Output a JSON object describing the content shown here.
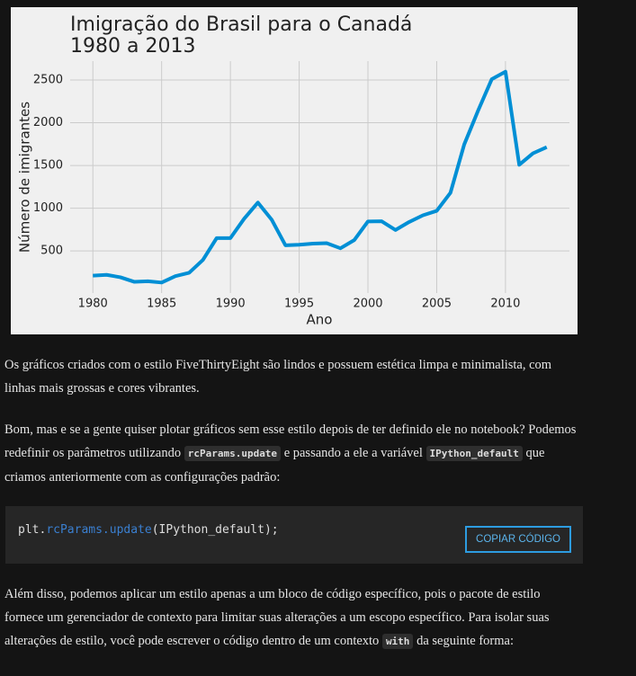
{
  "chart_data": {
    "type": "line",
    "title": [
      "Imigração do Brasil para o Canadá",
      "1980 a 2013"
    ],
    "x_label": "Ano",
    "y_label": "Número de imigrantes",
    "x": [
      1980,
      1981,
      1982,
      1983,
      1984,
      1985,
      1986,
      1987,
      1988,
      1989,
      1990,
      1991,
      1992,
      1993,
      1994,
      1995,
      1996,
      1997,
      1998,
      1999,
      2000,
      2001,
      2002,
      2003,
      2004,
      2005,
      2006,
      2007,
      2008,
      2009,
      2010,
      2011,
      2012,
      2013
    ],
    "series": [
      {
        "color": "#008fd5",
        "values": [
          211,
          220,
          192,
          139,
          145,
          130,
          205,
          244,
          394,
          650,
          650,
          877,
          1066,
          866,
          566,
          572,
          586,
          591,
          531,
          626,
          845,
          847,
          745,
          839,
          917,
          969,
          1181,
          1746,
          2138,
          2509,
          2598,
          1508,
          1642,
          1714
        ]
      }
    ],
    "xlim": [
      1978.35,
      2014.65
    ],
    "xticks": [
      1980,
      1985,
      1990,
      1995,
      2000,
      2005,
      2010
    ],
    "ylim": [
      7,
      2721
    ],
    "yticks": [
      500,
      1000,
      1500,
      2000,
      2500
    ],
    "grid": true
  },
  "paragraphs": [
    [
      "Os gráficos criados com o estilo FiveThirtyEight são lindos e possuem estética limpa e minimalista, com linhas mais grossas e cores vibrantes."
    ],
    [
      "Bom, mas e se a gente quiser plotar gráficos sem esse estilo depois de ter definido ele no notebook? Podemos redefinir os parâmetros utilizando ",
      "rcParams.update",
      " e passando a ele a variável ",
      "IPython_default",
      " que criamos anteriormente com as configurações padrão:"
    ]
  ],
  "code_block": {
    "code": [
      "plt.",
      "rcParams.update",
      "(IPython_default);"
    ],
    "button": "COPIAR CÓDIGO"
  },
  "paragraphs_after": [
    [
      "Além disso, podemos aplicar um estilo apenas a um bloco de código específico, pois o pacote de estilo fornece um gerenciador de contexto para limitar suas alterações a um escopo específico. Para isolar suas alterações de estilo, você pode escrever o código dentro de um contexto ",
      "with",
      " da seguinte forma:"
    ]
  ]
}
